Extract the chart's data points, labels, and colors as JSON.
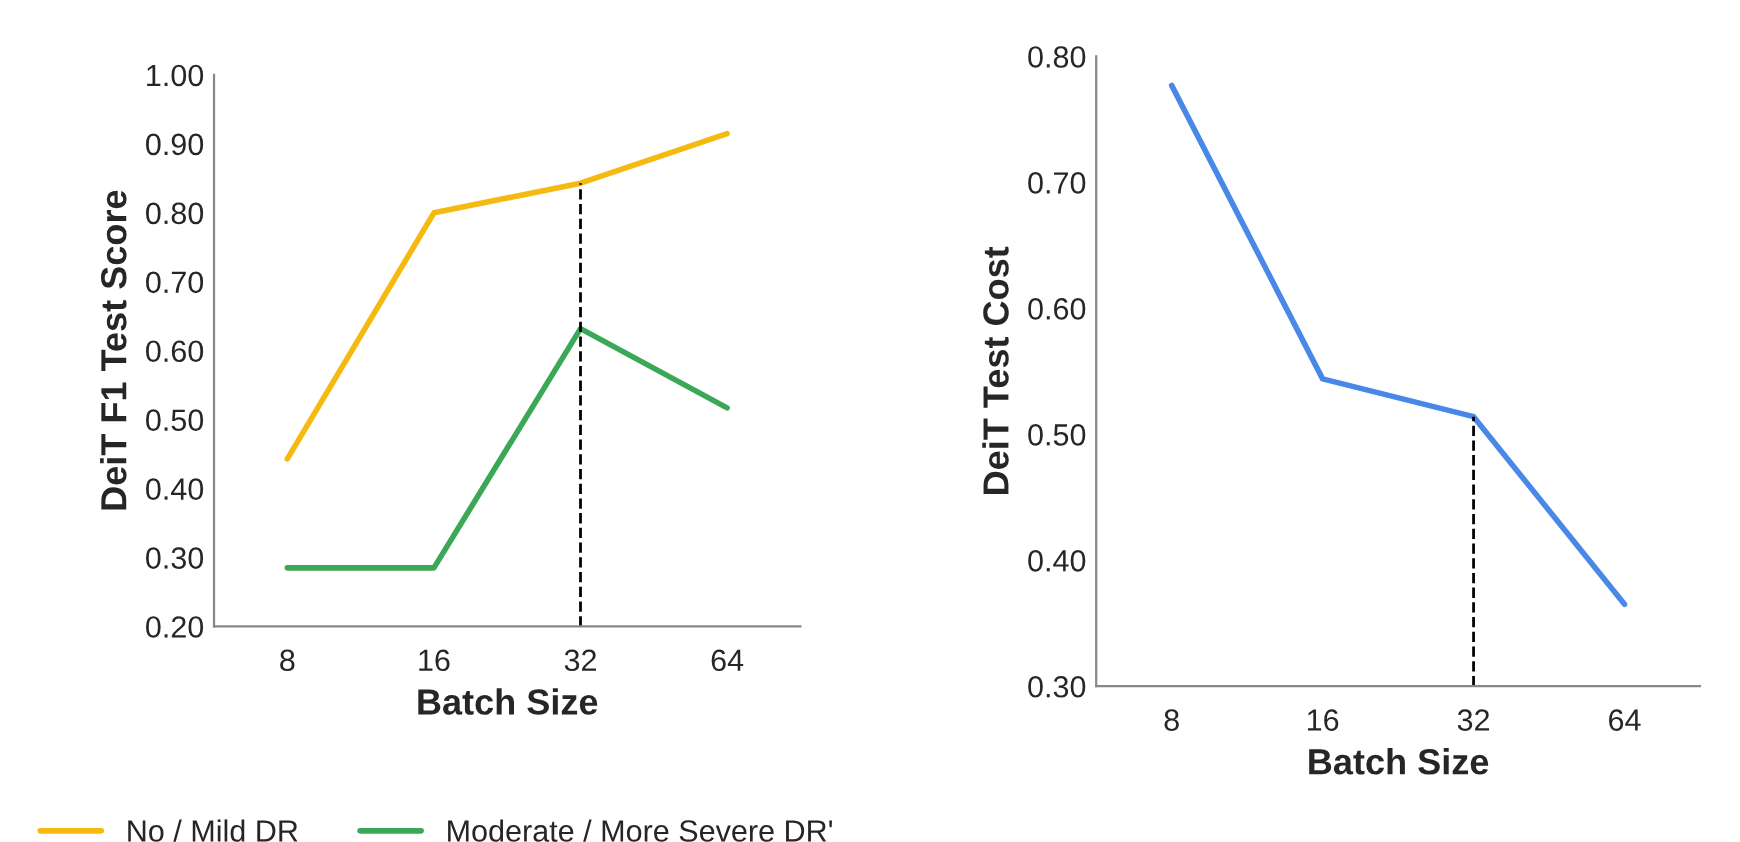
{
  "chart_data": [
    {
      "type": "line",
      "xlabel": "Batch Size",
      "ylabel": "DeiT F1 Test Score",
      "categories": [
        "8",
        "16",
        "32",
        "64"
      ],
      "series": [
        {
          "name": "No / Mild DR",
          "color": "#f5b90f",
          "values": [
            0.443,
            0.8,
            0.843,
            0.915
          ]
        },
        {
          "name": "Moderate / More Severe DR'",
          "color": "#3aa856",
          "values": [
            0.285,
            0.285,
            0.632,
            0.517
          ]
        }
      ],
      "ylim": [
        0.2,
        1.0
      ],
      "yticks": [
        {
          "value": 0.2,
          "label": "0.20"
        },
        {
          "value": 0.3,
          "label": "0.30"
        },
        {
          "value": 0.4,
          "label": "0.40"
        },
        {
          "value": 0.5,
          "label": "0.50"
        },
        {
          "value": 0.6,
          "label": "0.60"
        },
        {
          "value": 0.7,
          "label": "0.70"
        },
        {
          "value": 0.8,
          "label": "0.80"
        },
        {
          "value": 0.9,
          "label": "0.90"
        },
        {
          "value": 1.0,
          "label": "1.00"
        }
      ],
      "ref_lines": [
        {
          "axis": "x",
          "value": "32",
          "color": "#000000",
          "line_style": "dashed"
        }
      ],
      "grid": false,
      "legend": "bottom",
      "marker": "none",
      "line_style": "solid"
    },
    {
      "type": "line",
      "xlabel": "Batch Size",
      "ylabel": "DeiT Test Cost",
      "categories": [
        "8",
        "16",
        "32",
        "64"
      ],
      "series": [
        {
          "color": "#4a88e8",
          "values": [
            0.777,
            0.544,
            0.514,
            0.365
          ]
        }
      ],
      "ylim": [
        0.3,
        0.8
      ],
      "yticks": [
        {
          "value": 0.3,
          "label": "0.30"
        },
        {
          "value": 0.4,
          "label": "0.40"
        },
        {
          "value": 0.5,
          "label": "0.50"
        },
        {
          "value": 0.6,
          "label": "0.60"
        },
        {
          "value": 0.7,
          "label": "0.70"
        },
        {
          "value": 0.8,
          "label": "0.80"
        }
      ],
      "ref_lines": [
        {
          "axis": "x",
          "value": "32",
          "color": "#000000",
          "line_style": "dashed"
        }
      ],
      "grid": false,
      "marker": "none",
      "line_style": "solid"
    }
  ]
}
